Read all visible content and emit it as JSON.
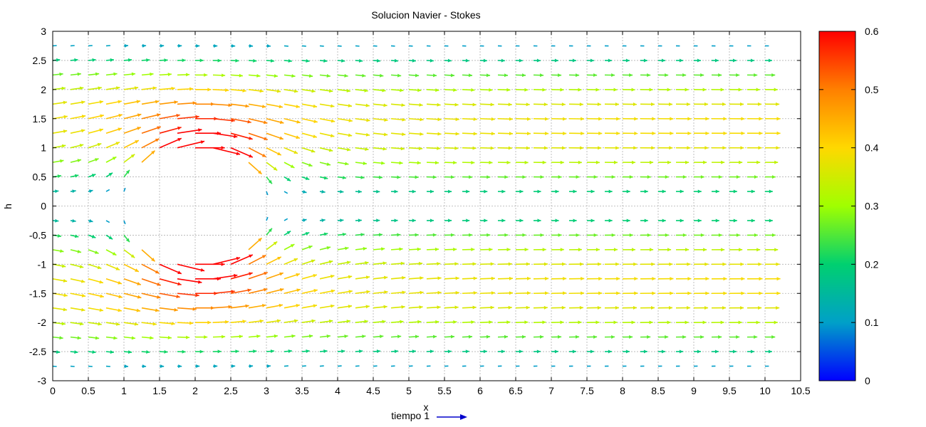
{
  "chart_data": {
    "type": "quiver",
    "title": "Solucion Navier - Stokes",
    "xlabel": "x",
    "ylabel": "h",
    "xlim": [
      0,
      10.5
    ],
    "ylim": [
      -3,
      3
    ],
    "xticks": [
      "0",
      "0.5",
      "1",
      "1.5",
      "2",
      "2.5",
      "3",
      "3.5",
      "4",
      "4.5",
      "5",
      "5.5",
      "6",
      "6.5",
      "7",
      "7.5",
      "8",
      "8.5",
      "9",
      "9.5",
      "10",
      "10.5"
    ],
    "yticks": [
      "3",
      "2.5",
      "2",
      "1.5",
      "1",
      "0.5",
      "0",
      "-0.5",
      "-1",
      "-1.5",
      "-2",
      "-2.5",
      "-3"
    ],
    "grid": true,
    "obstacle": {
      "shape": "circle",
      "center": [
        2,
        0
      ],
      "radius": 1
    },
    "inlet_velocity": 0.4,
    "grid_x": [
      0,
      10
    ],
    "grid_dx": 0.25,
    "grid_y": [
      -2.75,
      2.75
    ],
    "grid_dy": 0.25,
    "colorbar": {
      "min": 0,
      "max": 0.6,
      "ticks": [
        "0.6",
        "0.5",
        "0.4",
        "0.3",
        "0.2",
        "0.1",
        "0"
      ],
      "colors": [
        "#0000ff",
        "#00a0c8",
        "#00d070",
        "#a0ff00",
        "#ffd800",
        "#ff8000",
        "#ff0000"
      ]
    },
    "legend": {
      "label": "tiempo 1",
      "color": "#0000cc",
      "position": "bottom-center"
    }
  }
}
